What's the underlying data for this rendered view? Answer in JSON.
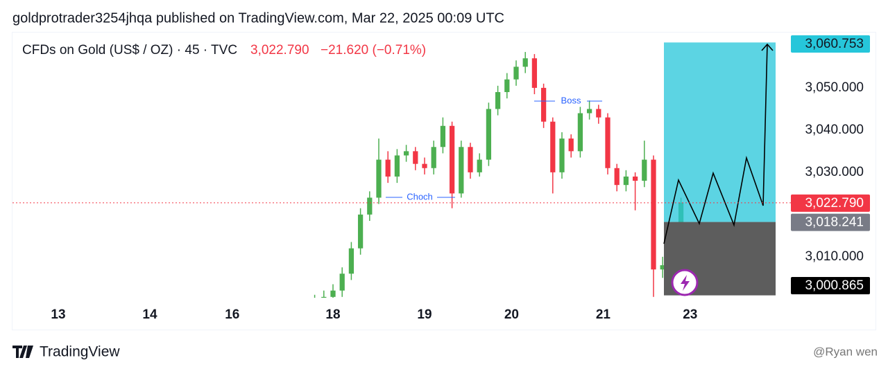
{
  "header": {
    "publisher": "goldprotrader3254jhqa published on TradingView.com, Mar 22, 2025 00:09 UTC"
  },
  "chart_data": {
    "type": "candlestick",
    "title": "CFDs on Gold (US$ / OZ) · 45 · TVC",
    "last_price": {
      "value": 3022.79,
      "label": "3,022.790"
    },
    "change": "−21.620 (−0.71%)",
    "up_color": "#4caf50",
    "down_color": "#f23645",
    "x": [
      66,
      68,
      70,
      72,
      74,
      76,
      78,
      80,
      82,
      84,
      86,
      88,
      90,
      92,
      94,
      96,
      98,
      100,
      102,
      104,
      106,
      108,
      110,
      112,
      114,
      116,
      118,
      120,
      122,
      124,
      126,
      128,
      130,
      132,
      134,
      136,
      138,
      140,
      142,
      144,
      146
    ],
    "open": [
      2998.5,
      2999.5,
      3000.5,
      3002,
      3006,
      3012,
      3020,
      3024,
      3033,
      3029,
      3034,
      3035,
      3032,
      3031,
      3036,
      3041,
      3025,
      3036,
      3030,
      3033,
      3045,
      3049,
      3052,
      3055,
      3057,
      3050,
      3042,
      3030,
      3038,
      3035,
      3044,
      3045,
      3043,
      3031,
      3027,
      3029,
      3028,
      3033,
      3007,
      3008,
      3016
    ],
    "high": [
      3001,
      3002,
      3003.5,
      3007.5,
      3013.5,
      3021.5,
      3025.5,
      3038,
      3035,
      3035.5,
      3036.5,
      3036,
      3033.5,
      3037.5,
      3043,
      3042,
      3037.5,
      3037,
      3034.5,
      3046.5,
      3050.5,
      3053.5,
      3056.5,
      3058.5,
      3058,
      3051,
      3043,
      3039.5,
      3039,
      3045.5,
      3047,
      3046,
      3044,
      3032,
      3030.5,
      3030,
      3037.5,
      3034,
      3010,
      3017.5,
      3024
    ],
    "low": [
      2997,
      2998,
      2999,
      3000.5,
      3004.5,
      3010.5,
      3018.5,
      3022.5,
      3027.5,
      3027.5,
      3032.5,
      3030.5,
      3029.5,
      3029.5,
      3034.5,
      3021.5,
      3024,
      3028.5,
      3029,
      3031.5,
      3043.5,
      3047.5,
      3050.5,
      3053.5,
      3048.5,
      3040.5,
      3025,
      3028.5,
      3033.5,
      3033.5,
      3042.5,
      3041.5,
      3029.5,
      3025.5,
      3025.5,
      3021,
      3026.5,
      3000.5,
      3005,
      3006.5,
      3014.5
    ],
    "close": [
      2999.5,
      3000.5,
      3002,
      3006,
      3012,
      3020,
      3024,
      3033,
      3029,
      3034,
      3035,
      3032,
      3031,
      3036,
      3041,
      3025,
      3036,
      3030,
      3033,
      3045,
      3049,
      3052,
      3055,
      3057,
      3050,
      3042,
      3030,
      3038,
      3035,
      3044,
      3045,
      3043,
      3031,
      3027,
      3029,
      3028,
      3033,
      3007,
      3008,
      3016,
      3022.8
    ],
    "xlim": [
      0,
      170
    ],
    "xticks": [
      {
        "value": 10,
        "label": "13"
      },
      {
        "value": 30,
        "label": "14"
      },
      {
        "value": 48,
        "label": "16"
      },
      {
        "value": 70,
        "label": "18"
      },
      {
        "value": 90,
        "label": "19"
      },
      {
        "value": 109,
        "label": "20"
      },
      {
        "value": 129,
        "label": "21"
      },
      {
        "value": 148,
        "label": "23"
      }
    ],
    "ylim": [
      3000.3,
      3063.1
    ],
    "yticks": [
      {
        "value": 3010,
        "label": "3,010.000"
      },
      {
        "value": 3030,
        "label": "3,030.000"
      },
      {
        "value": 3040,
        "label": "3,040.000"
      },
      {
        "value": 3050,
        "label": "3,050.000"
      }
    ],
    "position": {
      "target": {
        "value": 3060.753,
        "label": "3,060.753"
      },
      "entry": {
        "value": 3018.241,
        "label": "3,018.241"
      },
      "stop": {
        "value": 3000.865,
        "label": "3,000.865"
      }
    },
    "annotations": [
      "Choch",
      "Boss"
    ]
  },
  "footer": {
    "brand": "TradingView",
    "watermark": "@Ryan wen"
  }
}
